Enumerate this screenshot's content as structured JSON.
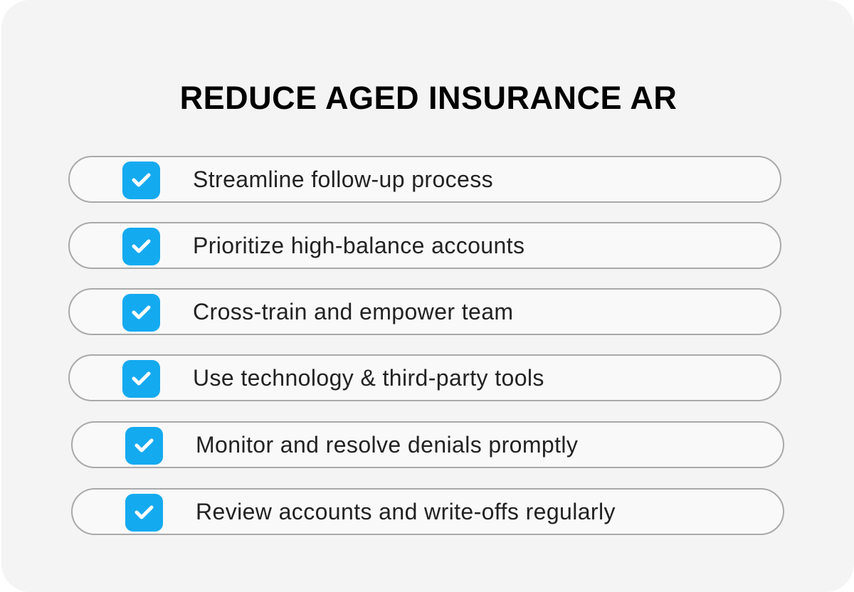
{
  "title": "REDUCE AGED INSURANCE AR",
  "accent_color": "#14aaf0",
  "items": [
    {
      "label": "Streamline follow-up process",
      "icon": "checkbox-checked-icon"
    },
    {
      "label": "Prioritize high-balance accounts",
      "icon": "checkbox-checked-icon"
    },
    {
      "label": "Cross-train and empower team",
      "icon": "checkbox-checked-icon"
    },
    {
      "label": "Use technology & third-party tools",
      "icon": "checkbox-checked-icon"
    },
    {
      "label": "Monitor and resolve denials promptly",
      "icon": "checkbox-checked-icon"
    },
    {
      "label": "Review accounts and write-offs regularly",
      "icon": "checkbox-checked-icon"
    }
  ]
}
